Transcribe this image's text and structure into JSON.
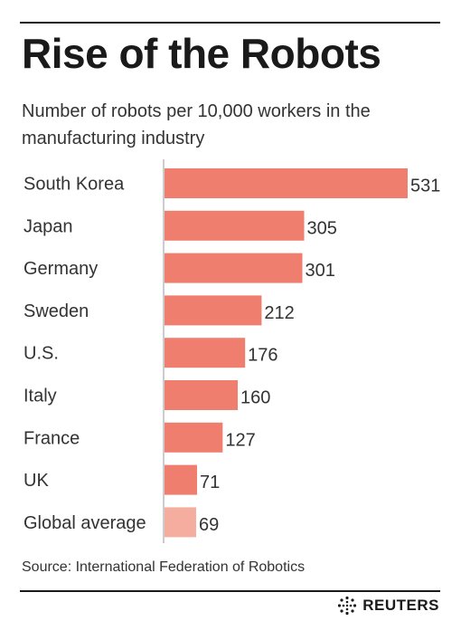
{
  "title": "Rise of the Robots",
  "subtitle": "Number of robots per 10,000 workers in the manufacturing industry",
  "source": "Source: International Federation of Robotics",
  "publisher": "REUTERS",
  "colors": {
    "bar": "#f07e6e",
    "bar_highlight": "#f4ad9e",
    "axis": "#9a9a9a",
    "text": "#333333"
  },
  "chart_data": {
    "type": "bar",
    "orientation": "horizontal",
    "categories": [
      "South Korea",
      "Japan",
      "Germany",
      "Sweden",
      "U.S.",
      "Italy",
      "France",
      "UK",
      "Global average"
    ],
    "values": [
      531,
      305,
      301,
      212,
      176,
      160,
      127,
      71,
      69
    ],
    "value_labels": [
      "531",
      "305",
      "301",
      "212",
      "176",
      "160",
      "127",
      "71",
      "69"
    ],
    "highlight_category": "Global average",
    "title": "Rise of the Robots",
    "xlabel": "",
    "ylabel": "",
    "xlim": [
      0,
      531
    ],
    "grid": false,
    "legend": "none"
  }
}
